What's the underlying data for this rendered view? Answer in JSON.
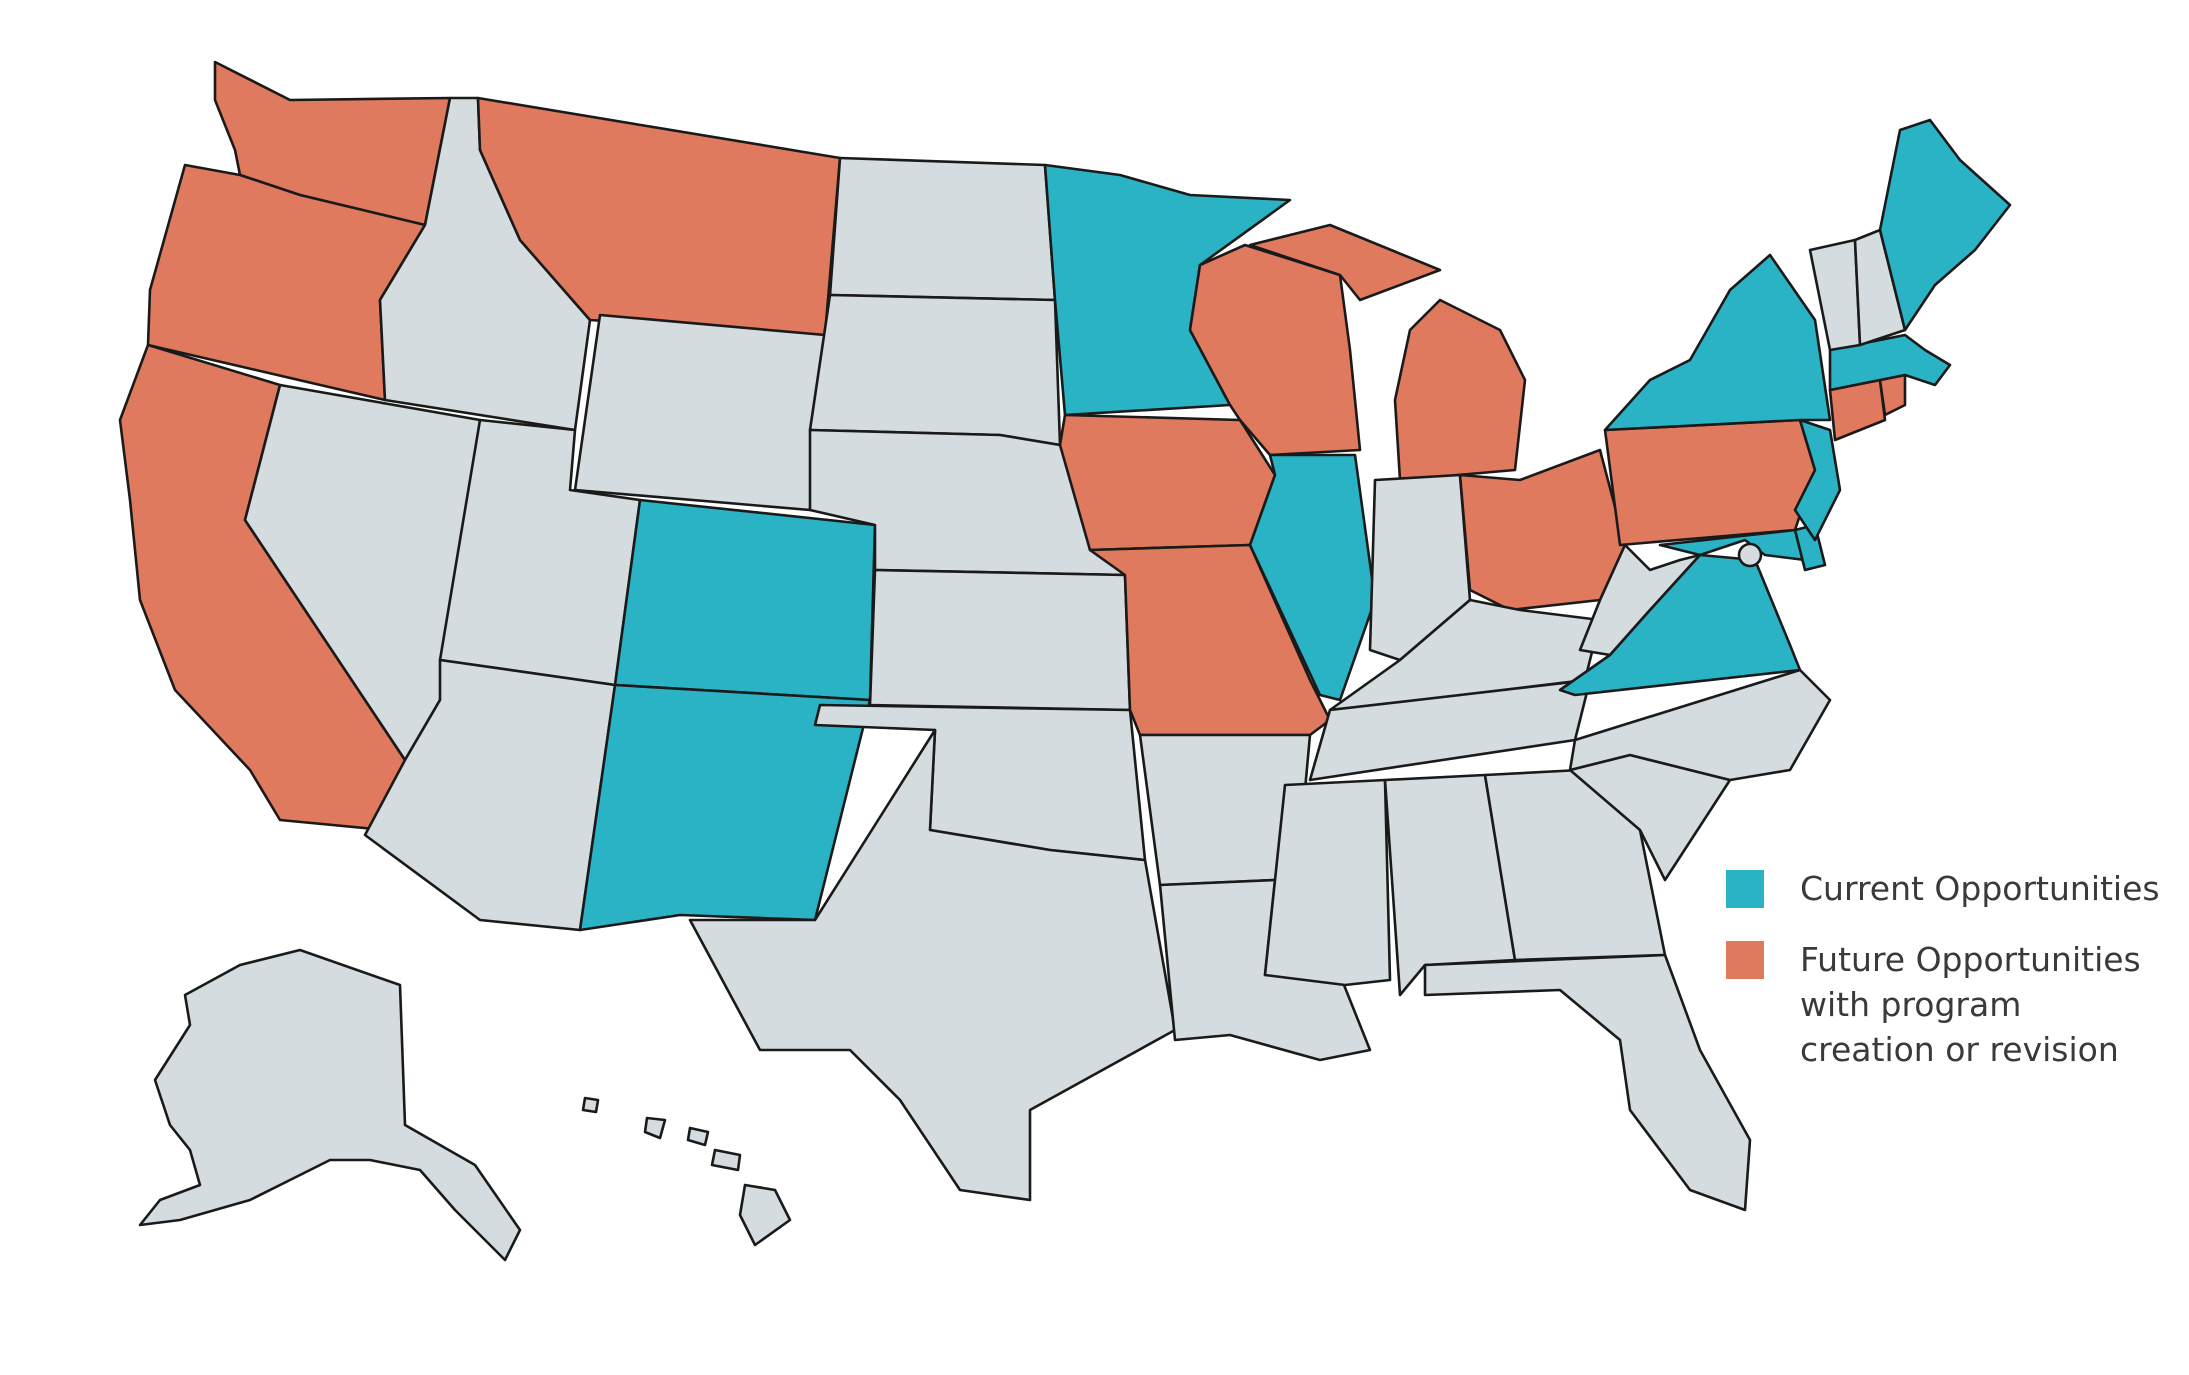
{
  "map": {
    "colors": {
      "current": "#2ab3c5",
      "future": "#e07a5f",
      "other": "#d4dcdf",
      "border": "#1a1a1a"
    },
    "states": {
      "current": [
        "Minnesota",
        "Illinois",
        "Colorado",
        "New Mexico",
        "New York",
        "Maine",
        "Massachusetts",
        "New Jersey",
        "Delaware",
        "Maryland",
        "Virginia"
      ],
      "future": [
        "Washington",
        "Oregon",
        "California",
        "Montana",
        "Wisconsin",
        "Michigan",
        "Iowa",
        "Missouri",
        "Ohio",
        "Pennsylvania",
        "Connecticut",
        "Rhode Island"
      ]
    }
  },
  "legend": {
    "items": [
      {
        "label": "Current Opportunities",
        "color_key": "current"
      },
      {
        "label": "Future Opportunities with program creation or revision",
        "color_key": "future"
      }
    ]
  }
}
